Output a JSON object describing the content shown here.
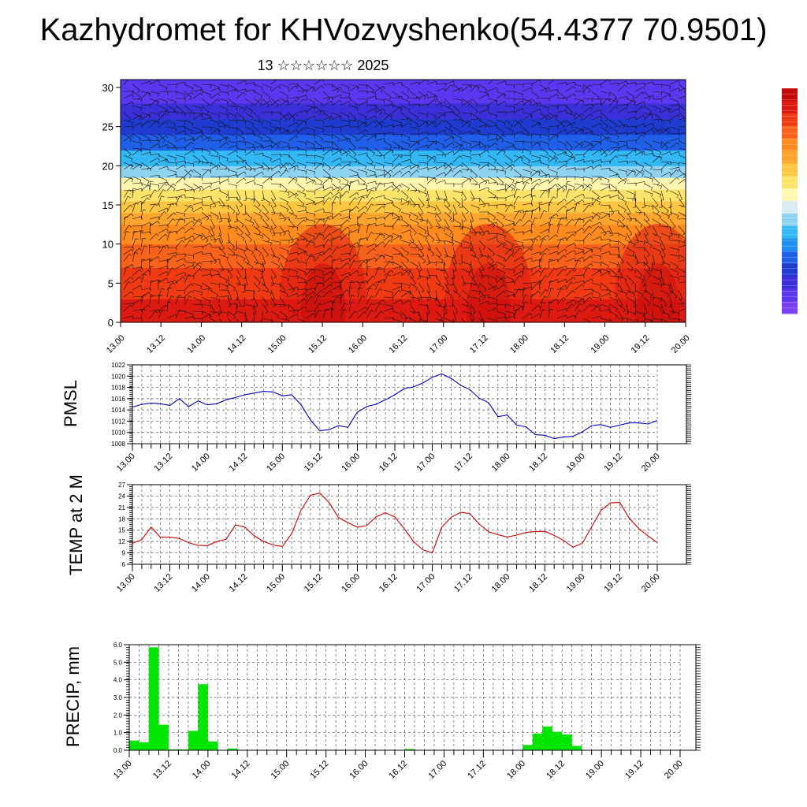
{
  "title": "Kazhydromet for KHVozvyshenko(54.4377 70.9501)",
  "subtitle": "13 ☆☆☆☆☆☆ 2025",
  "colors": {
    "pmsl_line": "#0000cc",
    "temp_line": "#cc0000",
    "precip_bar": "#00e600",
    "colorbar": [
      "#7b3ff2",
      "#5a38f0",
      "#3b2fd8",
      "#1f3bd0",
      "#2060e8",
      "#1f8ff0",
      "#33b8f5",
      "#8fd3f0",
      "#d8ecf5",
      "#fff7b0",
      "#ffe36a",
      "#ffc642",
      "#ffa52e",
      "#ff8a1e",
      "#f9621a",
      "#ef3a14",
      "#dd1a12",
      "#c40c0c"
    ]
  },
  "chart_data": [
    {
      "type": "heatmap",
      "name": "vertical-section",
      "title": "",
      "ylabel": "",
      "ylim": [
        0,
        31
      ],
      "yticks": [
        0,
        5,
        10,
        15,
        20,
        25,
        30
      ],
      "xticks": [
        "13.00",
        "13.12",
        "14.00",
        "14.12",
        "15.00",
        "15.12",
        "16.00",
        "16.12",
        "17.00",
        "17.12",
        "18.00",
        "18.12",
        "19.00",
        "19.12",
        "20.00"
      ],
      "overlay": "wind-barbs",
      "colorbar": "right"
    },
    {
      "type": "line",
      "name": "pmsl",
      "ylabel": "PMSL",
      "ylim": [
        1008,
        1022
      ],
      "yticks": [
        1008,
        1010,
        1012,
        1014,
        1016,
        1018,
        1020,
        1022
      ],
      "xticks": [
        "13.00",
        "13.12",
        "14.00",
        "14.12",
        "15.00",
        "15.12",
        "16.00",
        "16.12",
        "17.00",
        "17.12",
        "18.00",
        "18.12",
        "19.00",
        "19.12",
        "20.00"
      ],
      "grid": true,
      "values": [
        1014.5,
        1015.0,
        1015.2,
        1015.1,
        1014.8,
        1016.0,
        1014.6,
        1015.6,
        1014.9,
        1015.1,
        1015.8,
        1016.2,
        1016.7,
        1017.0,
        1017.3,
        1017.2,
        1016.5,
        1016.7,
        1014.9,
        1012.2,
        1010.3,
        1010.5,
        1011.2,
        1010.9,
        1013.6,
        1014.6,
        1015.0,
        1015.8,
        1016.7,
        1017.8,
        1018.1,
        1018.8,
        1019.8,
        1020.4,
        1019.6,
        1018.4,
        1017.6,
        1016.1,
        1015.3,
        1012.8,
        1013.1,
        1011.3,
        1011.0,
        1009.6,
        1009.5,
        1008.9,
        1009.2,
        1009.3,
        1010.1,
        1011.2,
        1011.4,
        1010.9,
        1011.3,
        1011.7,
        1011.7,
        1011.5,
        1012.1
      ]
    },
    {
      "type": "line",
      "name": "temp",
      "ylabel": "TEMP at 2 M",
      "ylim": [
        6,
        27
      ],
      "yticks": [
        6,
        9,
        12,
        15,
        18,
        21,
        24,
        27
      ],
      "xticks": [
        "13.00",
        "13.12",
        "14.00",
        "14.12",
        "15.00",
        "15.12",
        "16.00",
        "16.12",
        "17.00",
        "17.12",
        "18.00",
        "18.12",
        "19.00",
        "19.12",
        "20.00"
      ],
      "grid": true,
      "values": [
        11.5,
        12.5,
        15.8,
        13.1,
        13.2,
        12.8,
        11.7,
        11.0,
        10.9,
        12.0,
        12.6,
        16.4,
        15.8,
        13.5,
        12.0,
        11.1,
        10.7,
        14.1,
        20.3,
        24.2,
        24.8,
        22.2,
        18.3,
        17.0,
        15.8,
        16.2,
        18.5,
        19.6,
        18.5,
        15.4,
        12.0,
        9.8,
        9.0,
        15.8,
        18.4,
        19.7,
        19.4,
        16.6,
        14.6,
        13.8,
        13.2,
        13.7,
        14.4,
        14.6,
        14.7,
        13.6,
        12.3,
        10.5,
        11.5,
        15.9,
        20.2,
        22.2,
        22.3,
        18.2,
        15.5,
        13.5,
        11.7
      ]
    },
    {
      "type": "bar",
      "name": "precip",
      "ylabel": "PRECIP, mm",
      "ylim": [
        0,
        6
      ],
      "yticks": [
        "0.0",
        "1.0",
        "2.0",
        "3.0",
        "4.0",
        "5.0",
        "6.0"
      ],
      "xticks": [
        "13.00",
        "13.12",
        "14.00",
        "14.12",
        "15.00",
        "15.12",
        "16.00",
        "16.12",
        "17.00",
        "17.12",
        "18.00",
        "18.12",
        "19.00",
        "19.12",
        "20.00"
      ],
      "grid": true,
      "values": [
        0.55,
        0.45,
        5.85,
        1.45,
        0.05,
        0.05,
        1.1,
        3.75,
        0.5,
        0,
        0.1,
        0,
        0,
        0,
        0,
        0,
        0,
        0,
        0,
        0,
        0,
        0,
        0,
        0,
        0,
        0,
        0,
        0,
        0.07,
        0,
        0,
        0,
        0,
        0,
        0,
        0,
        0,
        0,
        0,
        0,
        0.3,
        0.95,
        1.35,
        1.05,
        0.9,
        0.25,
        0,
        0,
        0,
        0,
        0,
        0,
        0,
        0,
        0,
        0
      ]
    }
  ]
}
